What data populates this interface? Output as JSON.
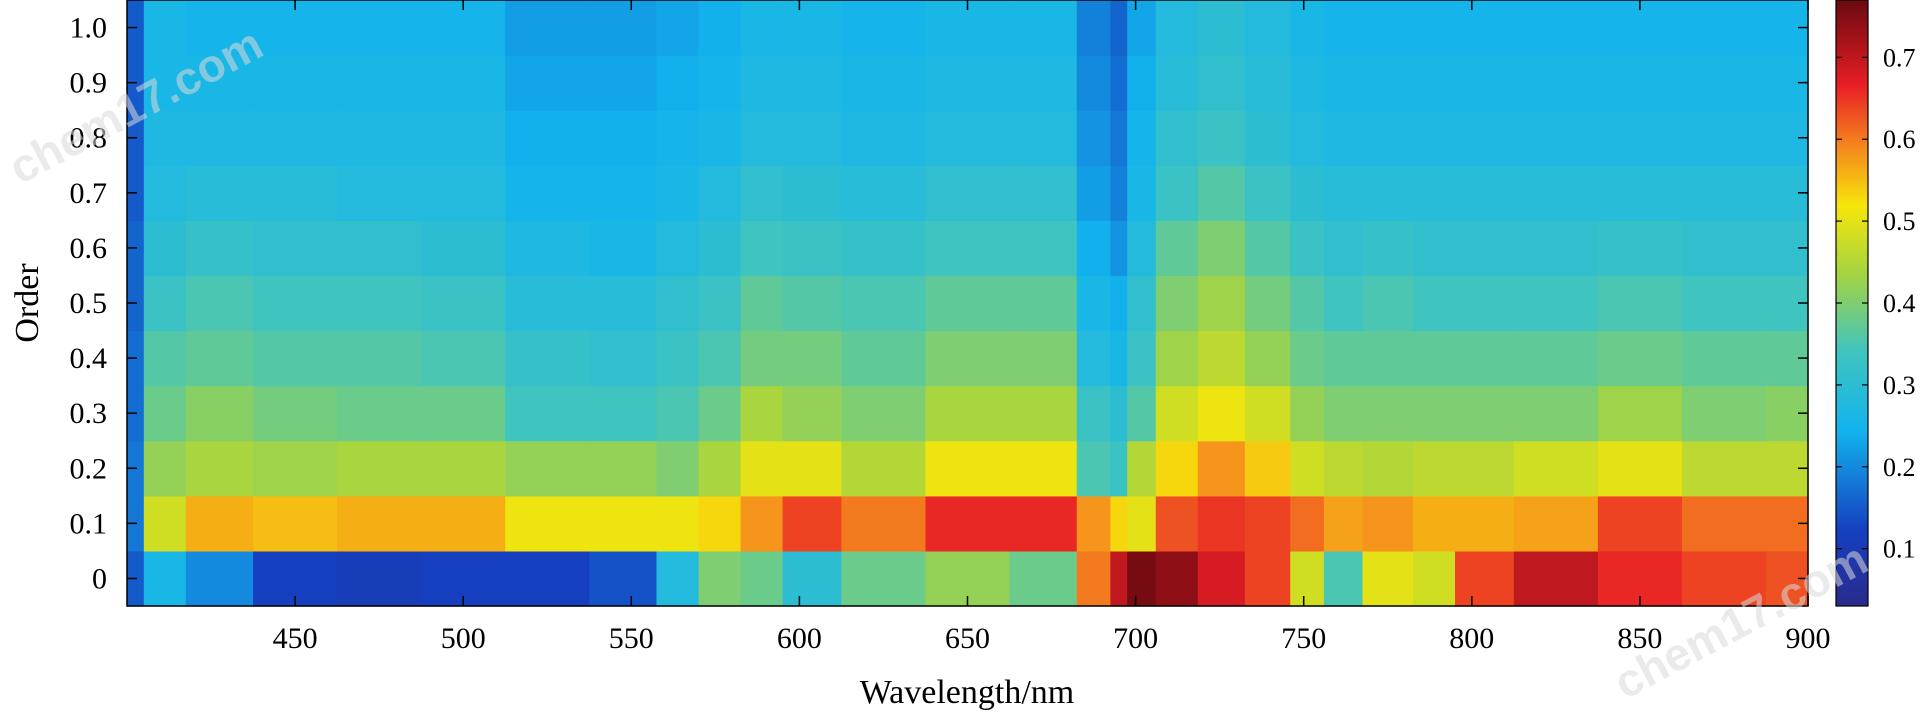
{
  "chart_data": {
    "type": "heatmap",
    "title": "",
    "xlabel": "Wavelength/nm",
    "ylabel": "Order",
    "xlim": [
      400,
      900
    ],
    "ylim": [
      -0.05,
      1.05
    ],
    "x_ticks": [
      450,
      500,
      550,
      600,
      650,
      700,
      750,
      800,
      850,
      900
    ],
    "y_ticks": [
      0,
      0.1,
      0.2,
      0.3,
      0.4,
      0.5,
      0.6,
      0.7,
      0.8,
      0.9,
      1.0
    ],
    "y_tick_labels": [
      "0",
      "0.1",
      "0.2",
      "0.3",
      "0.4",
      "0.5",
      "0.6",
      "0.7",
      "0.8",
      "0.9",
      "1.0"
    ],
    "colormap": "jet",
    "colorbar": {
      "range": [
        0.03,
        0.77
      ],
      "ticks": [
        0.1,
        0.2,
        0.3,
        0.4,
        0.5,
        0.6,
        0.7
      ],
      "tick_labels": [
        "0.1",
        "0.2",
        "0.3",
        "0.4",
        "0.5",
        "0.6",
        "0.7"
      ],
      "placement": "right"
    },
    "wavelengths": [
      400,
      410,
      425,
      450,
      475,
      500,
      525,
      550,
      565,
      575,
      590,
      600,
      625,
      650,
      675,
      690,
      695,
      700,
      712,
      725,
      740,
      752,
      760,
      775,
      790,
      800,
      825,
      850,
      875,
      900
    ],
    "orders": [
      0,
      0.1,
      0.2,
      0.3,
      0.4,
      0.5,
      0.6,
      0.7,
      0.8,
      0.9,
      1.0
    ],
    "rows": [
      [
        0.15,
        0.26,
        0.2,
        0.12,
        0.11,
        0.12,
        0.12,
        0.14,
        0.28,
        0.4,
        0.38,
        0.3,
        0.38,
        0.42,
        0.38,
        0.6,
        0.7,
        0.76,
        0.74,
        0.68,
        0.64,
        0.48,
        0.35,
        0.5,
        0.48,
        0.64,
        0.7,
        0.66,
        0.64,
        0.63
      ],
      [
        0.18,
        0.48,
        0.56,
        0.55,
        0.56,
        0.56,
        0.51,
        0.51,
        0.51,
        0.53,
        0.58,
        0.64,
        0.6,
        0.66,
        0.66,
        0.58,
        0.53,
        0.5,
        0.63,
        0.65,
        0.64,
        0.61,
        0.57,
        0.58,
        0.56,
        0.56,
        0.57,
        0.64,
        0.61,
        0.61
      ],
      [
        0.18,
        0.42,
        0.44,
        0.43,
        0.44,
        0.44,
        0.42,
        0.42,
        0.4,
        0.44,
        0.5,
        0.5,
        0.45,
        0.51,
        0.51,
        0.35,
        0.33,
        0.45,
        0.53,
        0.58,
        0.54,
        0.48,
        0.46,
        0.45,
        0.46,
        0.46,
        0.48,
        0.5,
        0.46,
        0.46
      ],
      [
        0.17,
        0.38,
        0.41,
        0.39,
        0.38,
        0.38,
        0.34,
        0.34,
        0.35,
        0.38,
        0.44,
        0.42,
        0.4,
        0.44,
        0.44,
        0.33,
        0.3,
        0.36,
        0.48,
        0.51,
        0.48,
        0.42,
        0.4,
        0.4,
        0.4,
        0.4,
        0.4,
        0.43,
        0.4,
        0.41
      ],
      [
        0.17,
        0.36,
        0.37,
        0.36,
        0.36,
        0.35,
        0.32,
        0.31,
        0.33,
        0.35,
        0.39,
        0.39,
        0.37,
        0.4,
        0.4,
        0.28,
        0.26,
        0.33,
        0.43,
        0.46,
        0.42,
        0.38,
        0.37,
        0.37,
        0.37,
        0.37,
        0.37,
        0.38,
        0.37,
        0.37
      ],
      [
        0.16,
        0.33,
        0.35,
        0.34,
        0.34,
        0.33,
        0.29,
        0.29,
        0.31,
        0.33,
        0.37,
        0.36,
        0.35,
        0.37,
        0.37,
        0.26,
        0.24,
        0.31,
        0.4,
        0.43,
        0.39,
        0.36,
        0.34,
        0.35,
        0.34,
        0.34,
        0.34,
        0.35,
        0.34,
        0.34
      ],
      [
        0.16,
        0.3,
        0.32,
        0.31,
        0.31,
        0.3,
        0.27,
        0.26,
        0.28,
        0.3,
        0.34,
        0.33,
        0.32,
        0.34,
        0.34,
        0.24,
        0.21,
        0.28,
        0.37,
        0.4,
        0.36,
        0.33,
        0.31,
        0.32,
        0.31,
        0.31,
        0.31,
        0.32,
        0.31,
        0.31
      ],
      [
        0.15,
        0.28,
        0.29,
        0.29,
        0.28,
        0.28,
        0.25,
        0.25,
        0.26,
        0.28,
        0.31,
        0.3,
        0.29,
        0.31,
        0.31,
        0.22,
        0.19,
        0.26,
        0.33,
        0.36,
        0.33,
        0.3,
        0.29,
        0.29,
        0.29,
        0.29,
        0.29,
        0.29,
        0.29,
        0.29
      ],
      [
        0.15,
        0.27,
        0.27,
        0.27,
        0.27,
        0.27,
        0.24,
        0.24,
        0.25,
        0.26,
        0.28,
        0.28,
        0.27,
        0.28,
        0.28,
        0.21,
        0.18,
        0.25,
        0.31,
        0.33,
        0.3,
        0.28,
        0.27,
        0.27,
        0.27,
        0.27,
        0.27,
        0.27,
        0.27,
        0.27
      ],
      [
        0.15,
        0.26,
        0.26,
        0.26,
        0.26,
        0.26,
        0.23,
        0.23,
        0.24,
        0.25,
        0.27,
        0.27,
        0.26,
        0.27,
        0.27,
        0.2,
        0.17,
        0.24,
        0.29,
        0.31,
        0.29,
        0.27,
        0.26,
        0.26,
        0.26,
        0.26,
        0.26,
        0.26,
        0.26,
        0.26
      ],
      [
        0.15,
        0.26,
        0.25,
        0.25,
        0.25,
        0.25,
        0.22,
        0.22,
        0.23,
        0.24,
        0.26,
        0.26,
        0.25,
        0.26,
        0.26,
        0.19,
        0.16,
        0.23,
        0.28,
        0.3,
        0.28,
        0.26,
        0.25,
        0.25,
        0.25,
        0.25,
        0.25,
        0.25,
        0.25,
        0.25
      ]
    ]
  },
  "watermark": {
    "text": "chem17.com"
  }
}
